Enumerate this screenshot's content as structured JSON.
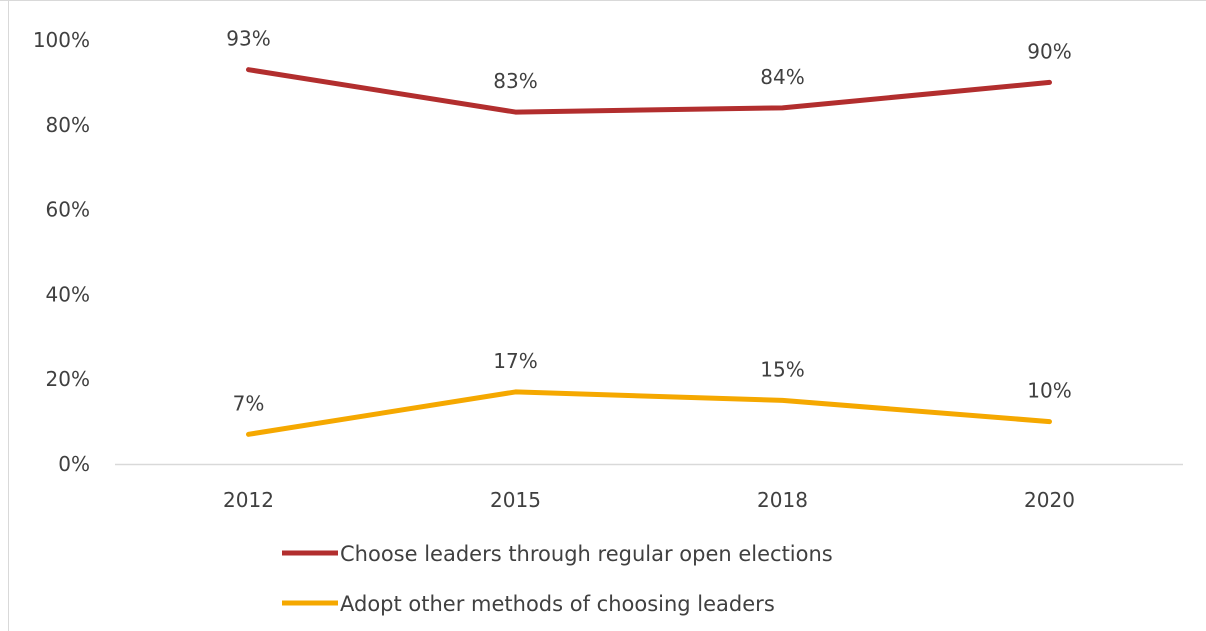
{
  "chart_data": {
    "type": "line",
    "categories": [
      "2012",
      "2015",
      "2018",
      "2020"
    ],
    "series": [
      {
        "name": "Choose leaders through regular open elections",
        "values": [
          93,
          83,
          84,
          90
        ],
        "labels": [
          "93%",
          "83%",
          "84%",
          "90%"
        ],
        "color": "#b22e2e"
      },
      {
        "name": "Adopt other methods of choosing leaders",
        "values": [
          7,
          17,
          15,
          10
        ],
        "labels": [
          "7%",
          "17%",
          "15%",
          "10%"
        ],
        "color": "#f5a800"
      }
    ],
    "y_ticks": [
      {
        "value": 0,
        "label": "0%"
      },
      {
        "value": 20,
        "label": "20%"
      },
      {
        "value": 40,
        "label": "40%"
      },
      {
        "value": 60,
        "label": "60%"
      },
      {
        "value": 80,
        "label": "80%"
      },
      {
        "value": 100,
        "label": "100%"
      }
    ],
    "ylim": [
      0,
      100
    ],
    "grid": false,
    "legend_position": "bottom",
    "axis_color": "#d9d9d9"
  }
}
